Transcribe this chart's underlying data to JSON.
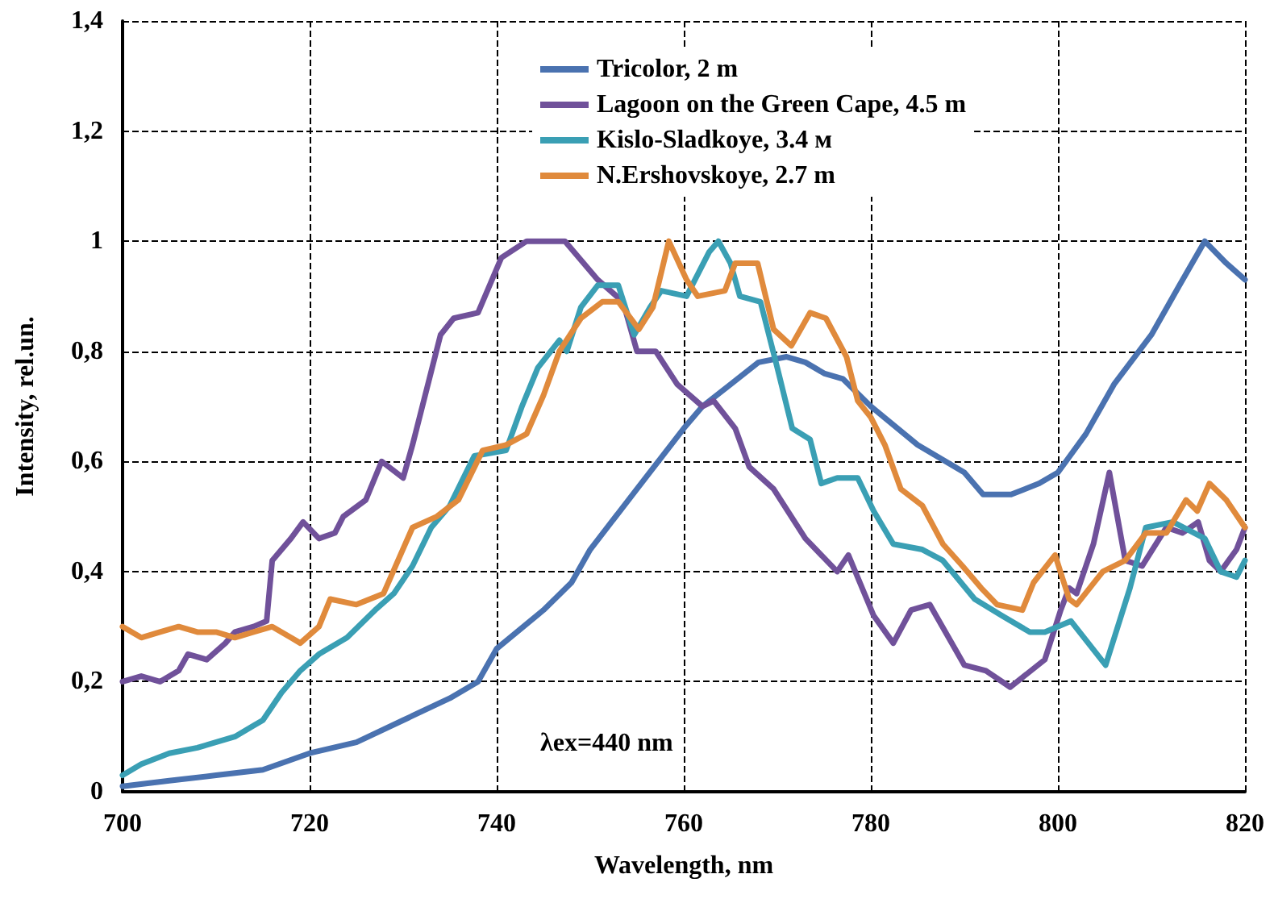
{
  "chart_data": {
    "type": "line",
    "xlabel": "Wavelength, nm",
    "ylabel": "Intensity, rel.un.",
    "xlim": [
      700,
      820
    ],
    "xticks": [
      700,
      720,
      740,
      760,
      780,
      800,
      820
    ],
    "ylim": [
      0,
      1.4
    ],
    "yticks": [
      0,
      {
        "value": 0.2,
        "label": "0,2"
      },
      {
        "value": 0.4,
        "label": "0,4"
      },
      {
        "value": 0.6,
        "label": "0,6"
      },
      {
        "value": 0.8,
        "label": "0,8"
      },
      1,
      {
        "value": 1.2,
        "label": "1,2"
      },
      {
        "value": 1.4,
        "label": "1,4"
      }
    ],
    "grid": true,
    "legend": "top",
    "marker": "none",
    "line_style": "solid",
    "annotations": [
      "λex=440 nm"
    ],
    "series": [
      {
        "name": "Tricolor, 2 m",
        "color": "#4a72b0",
        "x": [
          700,
          705,
          710,
          715,
          720,
          725,
          730,
          735,
          738,
          740,
          745,
          748,
          750,
          755,
          760,
          762,
          765,
          768,
          771,
          773,
          775,
          777,
          780,
          785,
          790,
          792,
          795,
          798,
          800,
          803,
          806,
          810,
          813,
          815.7,
          818,
          820
        ],
        "values": [
          0.01,
          0.02,
          0.03,
          0.04,
          0.07,
          0.09,
          0.13,
          0.17,
          0.2,
          0.26,
          0.33,
          0.38,
          0.44,
          0.55,
          0.66,
          0.7,
          0.74,
          0.78,
          0.79,
          0.78,
          0.76,
          0.75,
          0.7,
          0.63,
          0.58,
          0.54,
          0.54,
          0.56,
          0.58,
          0.65,
          0.74,
          0.83,
          0.92,
          1.0,
          0.96,
          0.93
        ]
      },
      {
        "name": "Lagoon on the Green Cape, 4.5 m",
        "color": "#70519a",
        "x": [
          700,
          702,
          704,
          706,
          707,
          709,
          711,
          712,
          714,
          715.4,
          716,
          718,
          719.3,
          721,
          722.7,
          723.6,
          726,
          727.7,
          730,
          731,
          734,
          735.4,
          738,
          740.5,
          743.2,
          747.3,
          750.8,
          753.5,
          755,
          757,
          759.3,
          762,
          763.2,
          765.5,
          767,
          769.6,
          773,
          776.4,
          777.6,
          780.3,
          782.4,
          784.3,
          786.3,
          790,
          792.3,
          794.9,
          798.6,
          800.3,
          801.2,
          802,
          803.8,
          805.5,
          807.2,
          809,
          811.6,
          813.3,
          815,
          816.2,
          817.4,
          819.1,
          820
        ],
        "values": [
          0.2,
          0.21,
          0.2,
          0.22,
          0.25,
          0.24,
          0.27,
          0.29,
          0.3,
          0.31,
          0.42,
          0.46,
          0.49,
          0.46,
          0.47,
          0.5,
          0.53,
          0.6,
          0.57,
          0.63,
          0.83,
          0.86,
          0.87,
          0.97,
          1.0,
          1.0,
          0.93,
          0.89,
          0.8,
          0.8,
          0.74,
          0.7,
          0.71,
          0.66,
          0.59,
          0.55,
          0.46,
          0.4,
          0.43,
          0.32,
          0.27,
          0.33,
          0.34,
          0.23,
          0.22,
          0.19,
          0.24,
          0.33,
          0.37,
          0.36,
          0.45,
          0.58,
          0.42,
          0.41,
          0.48,
          0.47,
          0.49,
          0.42,
          0.4,
          0.44,
          0.48
        ]
      },
      {
        "name": "Kislo-Sladkoye, 3.4 м",
        "color": "#3a9fb4",
        "x": [
          700,
          702,
          705,
          708,
          712,
          714,
          715,
          717,
          719,
          721,
          724,
          727,
          729,
          731,
          733,
          735,
          737.6,
          741,
          742.7,
          744.4,
          746.7,
          747.5,
          749,
          750.8,
          753,
          754.7,
          756.4,
          757.6,
          760.3,
          762.7,
          763.7,
          765,
          766,
          768.2,
          770,
          771.6,
          773.5,
          774.7,
          776.4,
          778.6,
          780.3,
          782.4,
          785.5,
          787.7,
          791.1,
          794,
          797,
          798.6,
          801.4,
          805.1,
          807.7,
          809.4,
          812.3,
          815.7,
          817.4,
          819.1,
          820
        ],
        "values": [
          0.03,
          0.05,
          0.07,
          0.08,
          0.1,
          0.12,
          0.13,
          0.18,
          0.22,
          0.25,
          0.28,
          0.33,
          0.36,
          0.41,
          0.48,
          0.52,
          0.61,
          0.62,
          0.7,
          0.77,
          0.82,
          0.8,
          0.88,
          0.92,
          0.92,
          0.83,
          0.88,
          0.91,
          0.9,
          0.98,
          1.0,
          0.96,
          0.9,
          0.89,
          0.77,
          0.66,
          0.64,
          0.56,
          0.57,
          0.57,
          0.51,
          0.45,
          0.44,
          0.42,
          0.35,
          0.32,
          0.29,
          0.29,
          0.31,
          0.23,
          0.37,
          0.48,
          0.49,
          0.46,
          0.4,
          0.39,
          0.42
        ]
      },
      {
        "name": "N.Ershovskoye, 2.7 m",
        "color": "#e08a3c",
        "x": [
          700,
          702,
          704,
          706,
          708,
          710,
          712,
          714,
          716,
          718,
          719,
          721,
          722.2,
          725,
          727.9,
          731,
          733.6,
          735.9,
          738.5,
          741,
          743.2,
          745,
          746.7,
          749,
          751.3,
          753,
          755.2,
          756.7,
          758.4,
          760.3,
          761.5,
          764.4,
          765.5,
          767.9,
          769.6,
          771.5,
          773.5,
          775.2,
          777.4,
          778.6,
          780,
          781.5,
          783.2,
          785.5,
          787.7,
          789.8,
          791.8,
          793.5,
          796.2,
          797.4,
          799.7,
          801.2,
          802,
          804.8,
          807.2,
          809.4,
          811.6,
          813.7,
          814.9,
          816.2,
          818,
          820
        ],
        "values": [
          0.3,
          0.28,
          0.29,
          0.3,
          0.29,
          0.29,
          0.28,
          0.29,
          0.3,
          0.28,
          0.27,
          0.3,
          0.35,
          0.34,
          0.36,
          0.48,
          0.5,
          0.53,
          0.62,
          0.63,
          0.65,
          0.72,
          0.8,
          0.86,
          0.89,
          0.89,
          0.84,
          0.88,
          1.0,
          0.93,
          0.9,
          0.91,
          0.96,
          0.96,
          0.84,
          0.81,
          0.87,
          0.86,
          0.79,
          0.71,
          0.68,
          0.63,
          0.55,
          0.52,
          0.45,
          0.41,
          0.37,
          0.34,
          0.33,
          0.38,
          0.43,
          0.35,
          0.34,
          0.4,
          0.42,
          0.47,
          0.47,
          0.53,
          0.51,
          0.56,
          0.53,
          0.48
        ]
      }
    ]
  }
}
